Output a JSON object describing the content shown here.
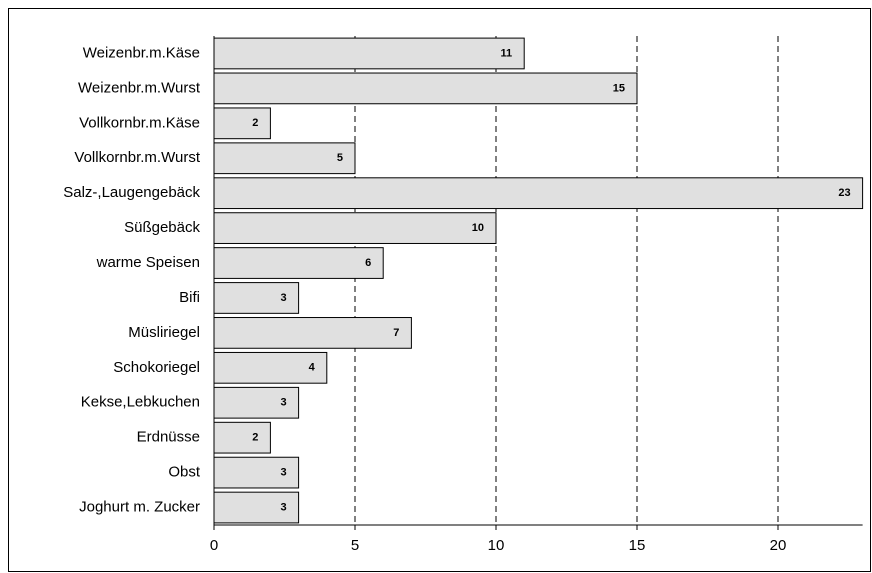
{
  "chart_data": {
    "type": "barh",
    "categories": [
      "Weizenbr.m.Käse",
      "Weizenbr.m.Wurst",
      "Vollkornbr.m.Käse",
      "Vollkornbr.m.Wurst",
      "Salz-,Laugengebäck",
      "Süßgebäck",
      "warme Speisen",
      "Bifi",
      "Müsliriegel",
      "Schokoriegel",
      "Kekse,Lebkuchen",
      "Erdnüsse",
      "Obst",
      "Joghurt m. Zucker"
    ],
    "values": [
      11,
      15,
      2,
      5,
      23,
      10,
      6,
      3,
      7,
      4,
      3,
      2,
      3,
      3
    ],
    "color": "#e0e0e0",
    "xlim": [
      0,
      23
    ],
    "xticks": [
      0,
      5,
      10,
      15,
      20
    ],
    "grid": true
  }
}
